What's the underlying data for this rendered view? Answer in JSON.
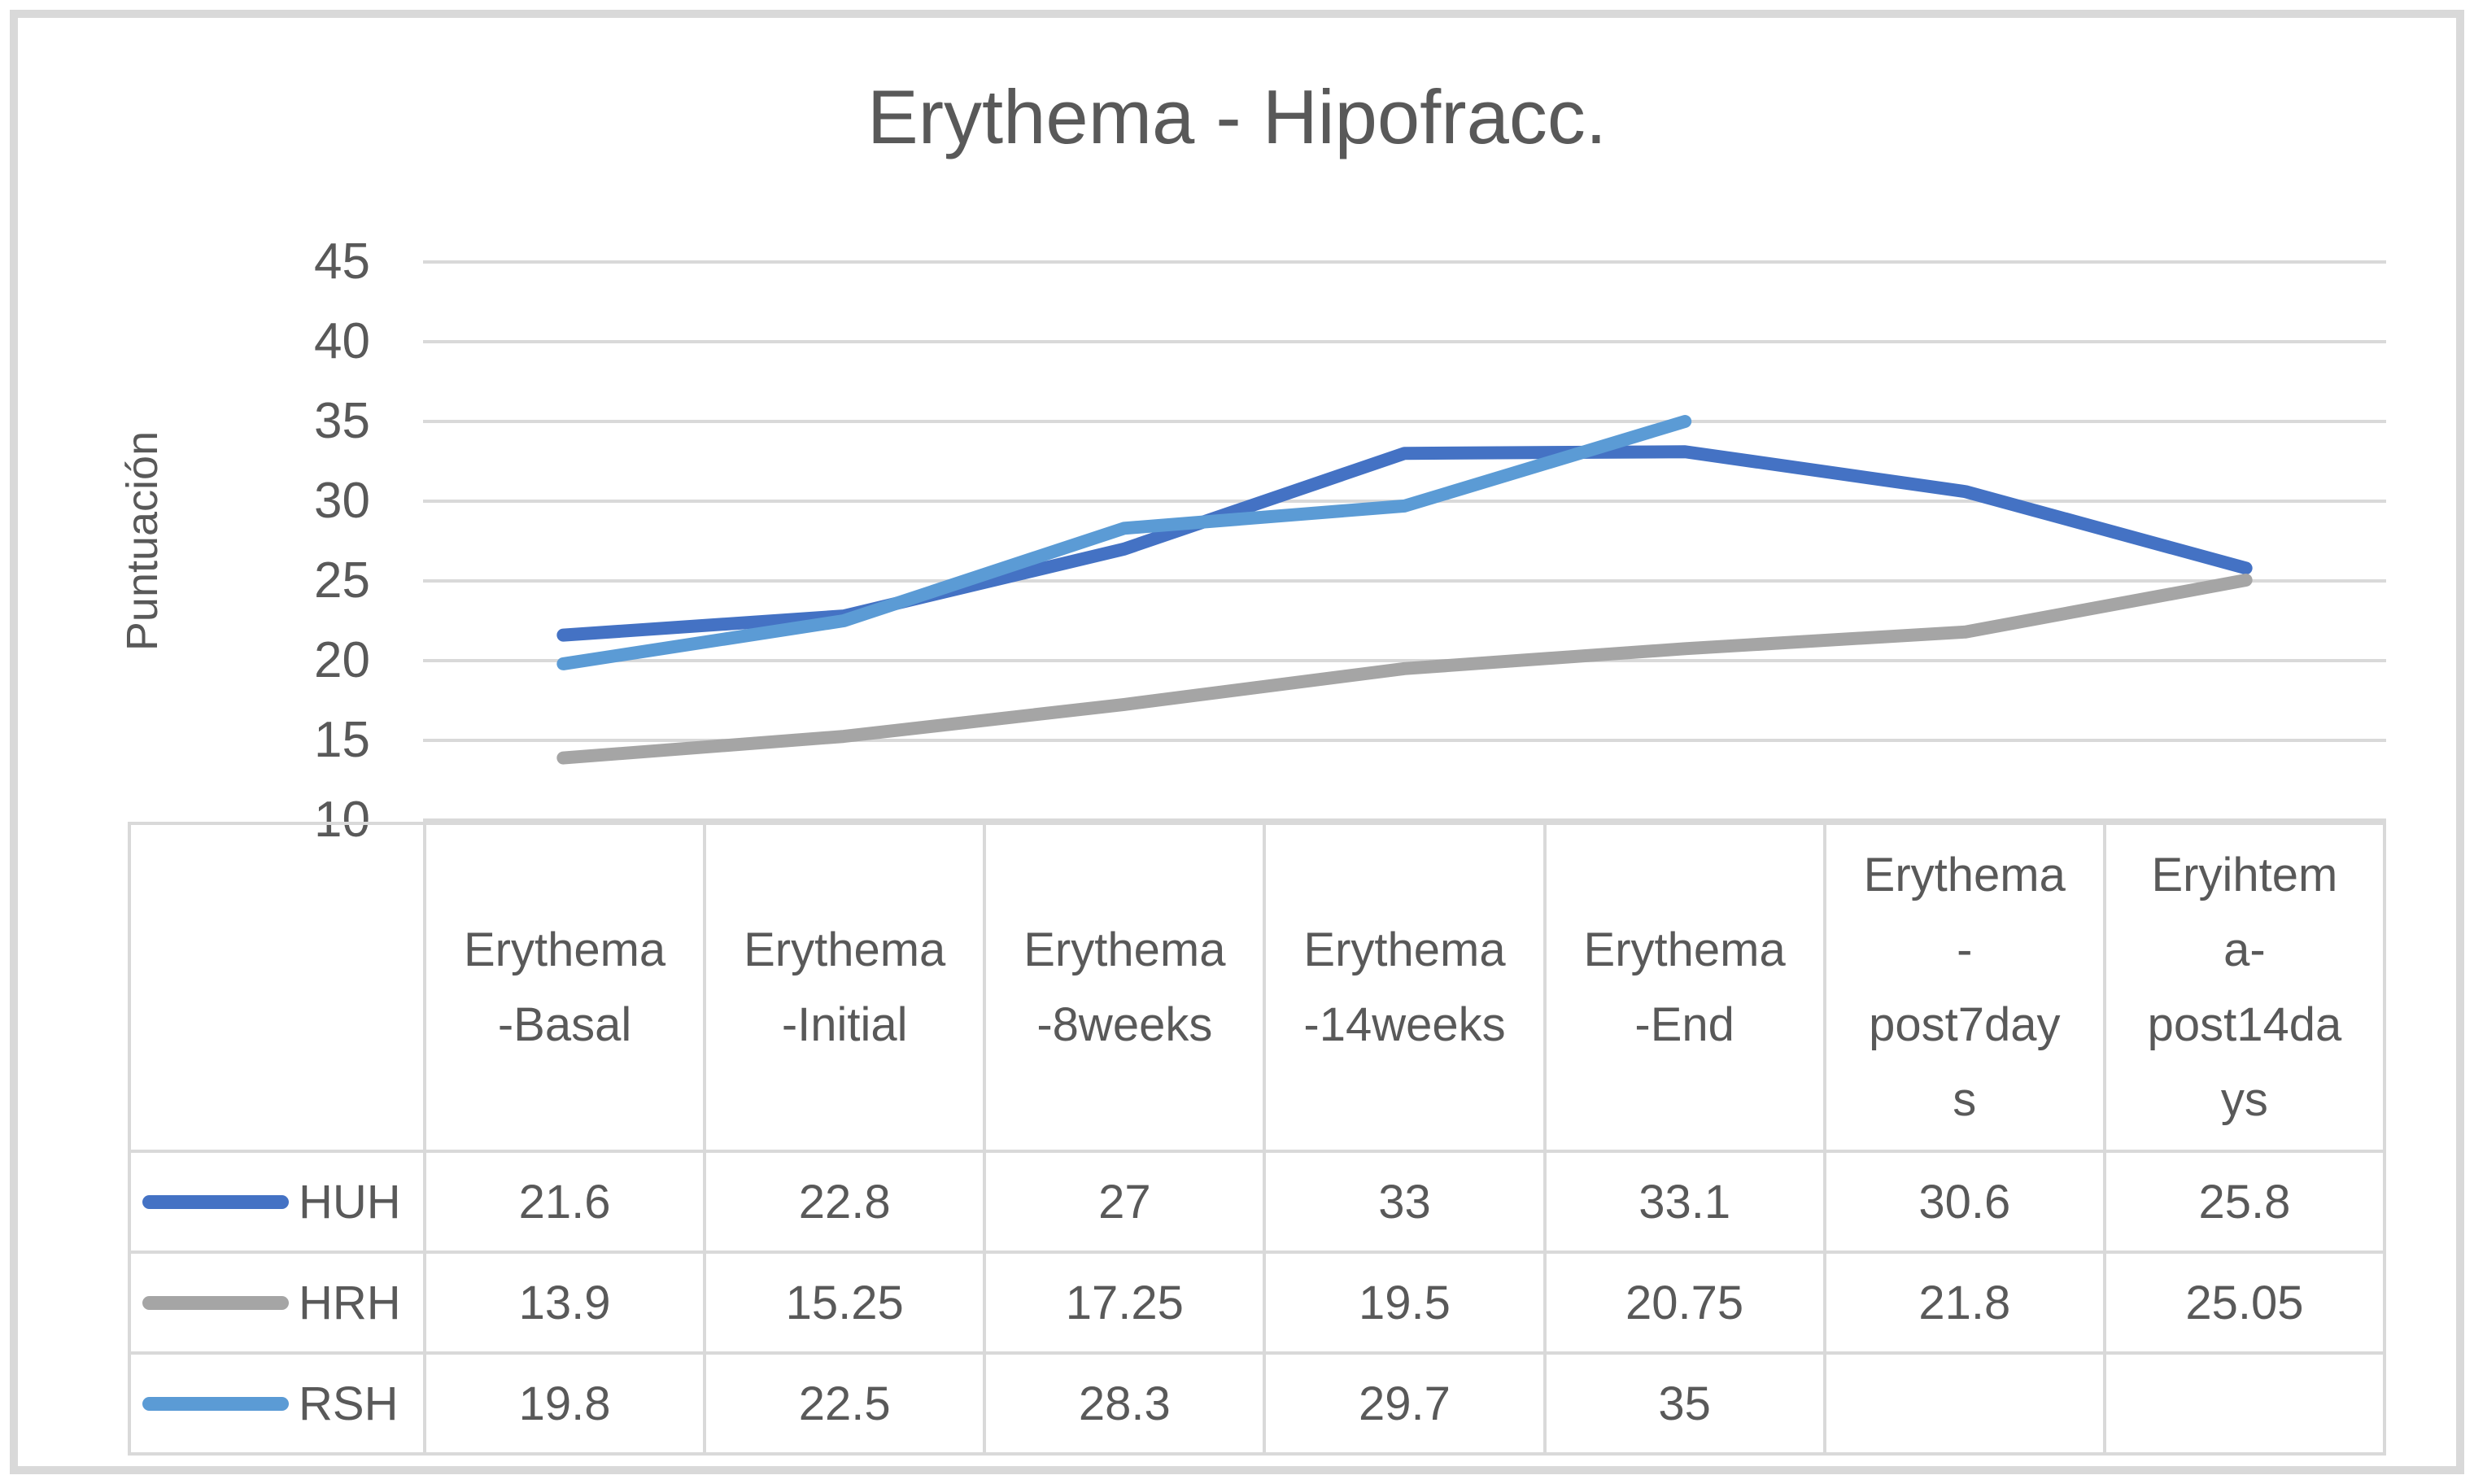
{
  "page": {
    "background": "#FFFFFF",
    "frame_border_color": "#D9D9D9"
  },
  "chart": {
    "title": "Erythema - Hipofracc.",
    "y_axis_label": "Puntuación",
    "tick_labels": [
      "45",
      "40",
      "35",
      "30",
      "25",
      "20",
      "15",
      "10"
    ],
    "gridline_color": "#D9D9D9",
    "text_color": "#595959"
  },
  "table": {
    "headers": [
      "Erythema\n-Basal",
      "Erythema\n-Initial",
      "Erythema\n-8weeks",
      "Erythema\n-14weeks",
      "Erythema\n-End",
      "Erythema\n-\npost7day\ns",
      "Eryihtem\na-\npost14da\nys"
    ],
    "rows": [
      {
        "name": "HUH",
        "swatch_color": "#4472C4",
        "cells": [
          "21.6",
          "22.8",
          "27",
          "33",
          "33.1",
          "30.6",
          "25.8"
        ]
      },
      {
        "name": "HRH",
        "swatch_color": "#A5A5A5",
        "cells": [
          "13.9",
          "15.25",
          "17.25",
          "19.5",
          "20.75",
          "21.8",
          "25.05"
        ]
      },
      {
        "name": "RSH",
        "swatch_color": "#5B9BD5",
        "cells": [
          "19.8",
          "22.5",
          "28.3",
          "29.7",
          "35",
          "",
          ""
        ]
      }
    ]
  },
  "chart_data": {
    "type": "line",
    "title": "Erythema - Hipofracc.",
    "xlabel": "",
    "ylabel": "Puntuación",
    "ylim": [
      10,
      45
    ],
    "y_tick_step": 5,
    "grid": "horizontal",
    "legend_position": "left-of-data-table",
    "categories": [
      "Erythema-Basal",
      "Erythema-Initial",
      "Erythema-8weeks",
      "Erythema-14weeks",
      "Erythema-End",
      "Erythema-post7days",
      "Eryihtema-post14days"
    ],
    "series": [
      {
        "name": "HUH",
        "color": "#4472C4",
        "values": [
          21.6,
          22.8,
          27,
          33,
          33.1,
          30.6,
          25.8
        ]
      },
      {
        "name": "HRH",
        "color": "#A5A5A5",
        "values": [
          13.9,
          15.25,
          17.25,
          19.5,
          20.75,
          21.8,
          25.05
        ]
      },
      {
        "name": "RSH",
        "color": "#5B9BD5",
        "values": [
          19.8,
          22.5,
          28.3,
          29.7,
          35,
          null,
          null
        ]
      }
    ]
  }
}
